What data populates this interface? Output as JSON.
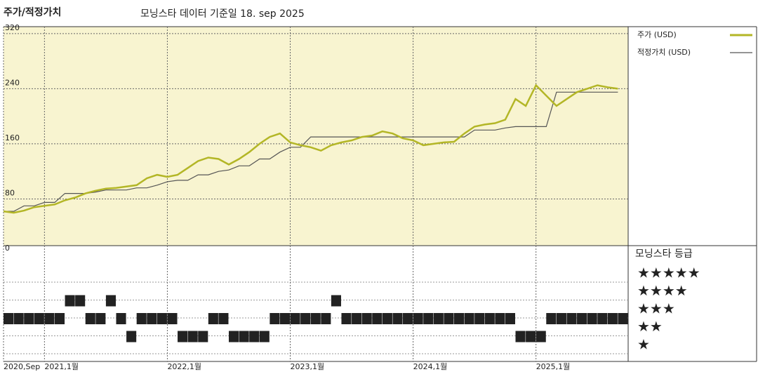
{
  "chart_data": {
    "type": "line",
    "title": "주가/적정가치",
    "subtitle": "모닝스타 데이터 기준일 18. sep 2025",
    "x": [
      "2020-09",
      "2020-10",
      "2020-11",
      "2020-12",
      "2021-01",
      "2021-02",
      "2021-03",
      "2021-04",
      "2021-05",
      "2021-06",
      "2021-07",
      "2021-08",
      "2021-09",
      "2021-10",
      "2021-11",
      "2021-12",
      "2022-01",
      "2022-02",
      "2022-03",
      "2022-04",
      "2022-05",
      "2022-06",
      "2022-07",
      "2022-08",
      "2022-09",
      "2022-10",
      "2022-11",
      "2022-12",
      "2023-01",
      "2023-02",
      "2023-03",
      "2023-04",
      "2023-05",
      "2023-06",
      "2023-07",
      "2023-08",
      "2023-09",
      "2023-10",
      "2023-11",
      "2023-12",
      "2024-01",
      "2024-02",
      "2024-03",
      "2024-04",
      "2024-05",
      "2024-06",
      "2024-07",
      "2024-08",
      "2024-09",
      "2024-10",
      "2024-11",
      "2024-12",
      "2025-01",
      "2025-02",
      "2025-03",
      "2025-04",
      "2025-05",
      "2025-06",
      "2025-07",
      "2025-08",
      "2025-09"
    ],
    "xlim": [
      "2020-09",
      "2025-10"
    ],
    "xticks": [
      {
        "value": "2020-09",
        "label": "2020,Sep"
      },
      {
        "value": "2021-01",
        "label": "2021,1월"
      },
      {
        "value": "2022-01",
        "label": "2022,1월"
      },
      {
        "value": "2023-01",
        "label": "2023,1월"
      },
      {
        "value": "2024-01",
        "label": "2024,1월"
      },
      {
        "value": "2025-01",
        "label": "2025,1월"
      }
    ],
    "ylim": [
      0,
      330
    ],
    "yticks": [
      0,
      80,
      160,
      240,
      320
    ],
    "grid": true,
    "series": [
      {
        "name": "주가 (USD)",
        "color": "#b3b626",
        "values": [
          62,
          60,
          63,
          68,
          70,
          72,
          78,
          82,
          88,
          92,
          95,
          96,
          98,
          100,
          110,
          115,
          112,
          115,
          125,
          135,
          140,
          138,
          130,
          138,
          148,
          160,
          170,
          175,
          162,
          158,
          155,
          150,
          158,
          162,
          165,
          170,
          172,
          178,
          175,
          168,
          165,
          158,
          160,
          162,
          163,
          175,
          185,
          188,
          190,
          195,
          225,
          215,
          245,
          230,
          215,
          225,
          235,
          240,
          245,
          242,
          240
        ]
      },
      {
        "name": "적정가치 (USD)",
        "color": "#555555",
        "values": [
          62,
          62,
          70,
          70,
          75,
          75,
          88,
          88,
          88,
          90,
          93,
          93,
          93,
          96,
          96,
          100,
          105,
          107,
          107,
          115,
          115,
          120,
          122,
          128,
          128,
          138,
          138,
          148,
          155,
          155,
          170,
          170,
          170,
          170,
          170,
          170,
          170,
          170,
          170,
          170,
          170,
          170,
          170,
          170,
          170,
          170,
          180,
          180,
          180,
          183,
          185,
          185,
          185,
          185,
          235,
          235,
          235,
          235,
          235,
          235,
          235
        ]
      }
    ],
    "rating": {
      "title": "모닝스타 등급",
      "levels": [
        "★★★★★",
        "★★★★",
        "★★★",
        "★★",
        "★"
      ],
      "color": "#222222",
      "values": [
        3,
        3,
        3,
        3,
        3,
        3,
        4,
        4,
        3,
        3,
        4,
        3,
        2,
        3,
        3,
        3,
        3,
        2,
        2,
        2,
        3,
        3,
        2,
        2,
        2,
        2,
        3,
        3,
        3,
        3,
        3,
        3,
        4,
        3,
        3,
        3,
        3,
        3,
        3,
        3,
        3,
        3,
        3,
        3,
        3,
        3,
        3,
        3,
        3,
        3,
        2,
        2,
        2,
        3,
        3,
        3,
        3,
        3,
        3,
        3,
        3
      ]
    }
  }
}
